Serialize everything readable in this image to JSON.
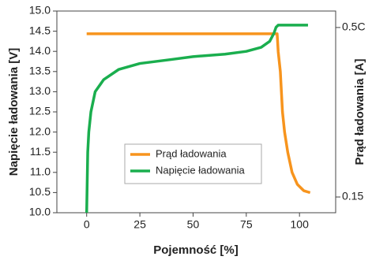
{
  "chart_data": {
    "type": "line",
    "x_label": "Pojemność [%]",
    "y_label": "Napięcie ładowania [V]",
    "y2_label": "Prąd ładowania [A]",
    "xlim": [
      -14,
      117
    ],
    "xticks": [
      0,
      25,
      50,
      75,
      100
    ],
    "ylim": [
      10,
      15
    ],
    "yticks": [
      {
        "value": 10,
        "label": "10.0"
      },
      10.5,
      {
        "value": 11,
        "label": "11.0"
      },
      11.5,
      {
        "value": 12,
        "label": "12.0"
      },
      12.5,
      {
        "value": 13,
        "label": "13.0"
      },
      13.5,
      {
        "value": 14,
        "label": "14.0"
      },
      14.5,
      {
        "value": 15,
        "label": "15.0"
      }
    ],
    "y2lim": [
      0.1175,
      0.534
    ],
    "y2ticks": [
      {
        "value": 0.5,
        "label": "0.5C"
      },
      0.15
    ],
    "legend": "center",
    "series": [
      {
        "name": "Prąd ładowania",
        "color": "#f7941d",
        "axis": "y2",
        "x": [
          0,
          89.5,
          90,
          91,
          92,
          93,
          94.5,
          96.5,
          99,
          102,
          105
        ],
        "values": [
          0.487,
          0.487,
          0.45,
          0.409,
          0.326,
          0.284,
          0.242,
          0.201,
          0.176,
          0.163,
          0.159
        ]
      },
      {
        "name": "Napięcie ładowania",
        "color": "#1aae4e",
        "x": [
          0,
          0.5,
          1,
          2,
          4,
          8,
          15,
          25,
          40,
          50,
          65,
          75,
          82,
          86,
          88,
          89,
          90,
          91,
          100,
          104
        ],
        "values": [
          10.0,
          11.5,
          12.0,
          12.5,
          13.0,
          13.3,
          13.55,
          13.7,
          13.8,
          13.87,
          13.93,
          14.0,
          14.1,
          14.25,
          14.45,
          14.6,
          14.65,
          14.65,
          14.65,
          14.65
        ]
      }
    ]
  }
}
